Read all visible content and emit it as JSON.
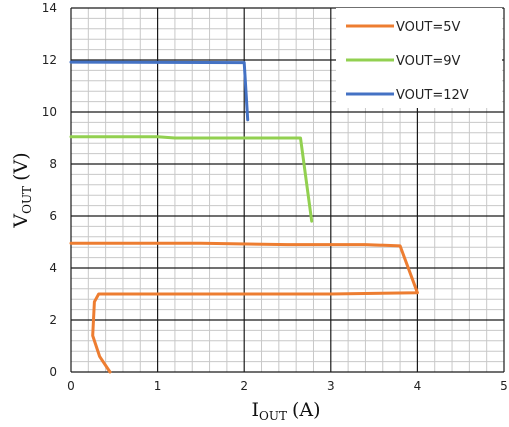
{
  "chart_data": {
    "type": "line",
    "xlabel": {
      "main": "I",
      "sub": "OUT",
      "unit": "(A)"
    },
    "ylabel": {
      "main": "V",
      "sub": "OUT",
      "unit": "(V)"
    },
    "xlim": [
      0,
      5
    ],
    "ylim": [
      0,
      14
    ],
    "x_ticks": [
      "0",
      "1",
      "2",
      "3",
      "4",
      "5"
    ],
    "y_ticks": [
      "0",
      "2",
      "4",
      "6",
      "8",
      "10",
      "12",
      "14"
    ],
    "grid": "major and minor",
    "legend_position": "top-right",
    "series": [
      {
        "name": "VOUT=5V",
        "color": "#ed7d31",
        "points": [
          [
            0.0,
            4.95
          ],
          [
            1.5,
            4.95
          ],
          [
            2.5,
            4.9
          ],
          [
            3.4,
            4.9
          ],
          [
            3.8,
            4.85
          ],
          [
            4.0,
            3.05
          ],
          [
            3.0,
            3.0
          ],
          [
            2.0,
            3.0
          ],
          [
            1.0,
            3.0
          ],
          [
            0.32,
            3.0
          ],
          [
            0.27,
            2.7
          ],
          [
            0.25,
            1.4
          ],
          [
            0.33,
            0.6
          ],
          [
            0.45,
            0.0
          ]
        ]
      },
      {
        "name": "VOUT=9V",
        "color": "#92d050",
        "points": [
          [
            0.0,
            9.05
          ],
          [
            1.0,
            9.05
          ],
          [
            1.2,
            9.0
          ],
          [
            2.65,
            9.0
          ],
          [
            2.78,
            5.8
          ]
        ]
      },
      {
        "name": "VOUT=12V",
        "color": "#4472c4",
        "points": [
          [
            0.0,
            11.92
          ],
          [
            2.0,
            11.9
          ],
          [
            2.04,
            9.7
          ]
        ]
      }
    ]
  }
}
